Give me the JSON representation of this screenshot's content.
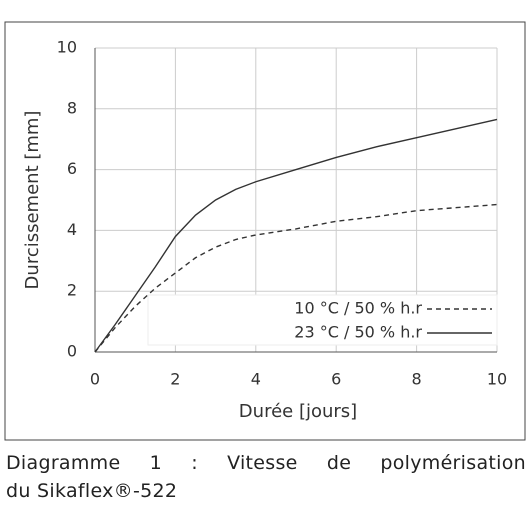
{
  "chart_data": {
    "type": "line",
    "x_label": "Durée [jours]",
    "y_label": "Durcissement [mm]",
    "x": [
      0,
      0.5,
      1,
      1.5,
      2,
      2.5,
      3,
      3.5,
      4,
      5,
      6,
      7,
      8,
      9,
      10
    ],
    "series": [
      {
        "name": "10 °C / 50 % h.r",
        "color": "#333333",
        "style": "dashed",
        "values": [
          0,
          0.8,
          1.5,
          2.1,
          2.6,
          3.1,
          3.45,
          3.7,
          3.85,
          4.05,
          4.3,
          4.45,
          4.65,
          4.75,
          4.85
        ]
      },
      {
        "name": "23 °C / 50 % h.r",
        "color": "#333333",
        "style": "solid",
        "values": [
          0,
          0.9,
          1.85,
          2.8,
          3.8,
          4.5,
          5.0,
          5.35,
          5.6,
          6.0,
          6.4,
          6.75,
          7.05,
          7.35,
          7.65
        ]
      }
    ],
    "xlim": [
      0,
      10
    ],
    "xticks": [
      0,
      2,
      4,
      6,
      8,
      10
    ],
    "ylim": [
      0,
      10
    ],
    "yticks": [
      0,
      2,
      4,
      6,
      8,
      10
    ],
    "grid": true,
    "legend": "lower right"
  },
  "caption": [
    "Diagramme 1 : Vitesse de polymérisation",
    "du Sikaflex®-522"
  ]
}
